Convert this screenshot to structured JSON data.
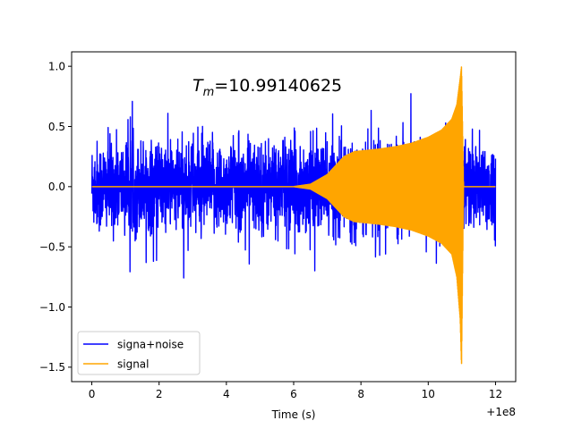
{
  "chart_data": {
    "type": "line",
    "xlabel": "Time (s)",
    "ylabel": "",
    "x_offset_label": "+1e8",
    "xlim": [
      -0.6,
      12.6
    ],
    "ylim": [
      -1.62,
      1.12
    ],
    "xticks": [
      0,
      2,
      4,
      6,
      8,
      10,
      12
    ],
    "xtick_labels": [
      "0",
      "2",
      "4",
      "6",
      "8",
      "10",
      "12"
    ],
    "yticks": [
      1.0,
      0.5,
      0.0,
      -0.5,
      -1.0,
      -1.5
    ],
    "ytick_labels": [
      "1.0",
      "0.5",
      "0.0",
      "−0.5",
      "−1.0",
      "−1.5"
    ],
    "grid": false,
    "legend_position": "lower-left",
    "annotation": {
      "symbol": "T",
      "subscript": "m",
      "value_text": "=10.99140625"
    },
    "series": [
      {
        "name": "signa+noise",
        "color": "#0000ff",
        "description": "noise band roughly ±0.3 with peaks to about +0.8 and −0.85, from x=0 to x=12",
        "x_range": [
          0,
          12
        ],
        "typical_amplitude": 0.3,
        "max": 0.8,
        "min": -0.85
      },
      {
        "name": "signal",
        "color": "#ffa500",
        "description": "chirp: zero until about x=6, envelope grows to about 0.29 near x=7.8, then rises to 1.0 / −1.5 at x≈10.99, then zero until x=12",
        "x": [
          0,
          6.0,
          6.5,
          7.0,
          7.5,
          7.8,
          8.5,
          9.0,
          9.5,
          10.0,
          10.4,
          10.7,
          10.85,
          10.95,
          10.99,
          11.05,
          12.0
        ],
        "upper": [
          0,
          0.0,
          0.02,
          0.1,
          0.25,
          0.29,
          0.31,
          0.33,
          0.36,
          0.41,
          0.47,
          0.56,
          0.68,
          0.9,
          1.0,
          0.0,
          0.0
        ],
        "lower": [
          0,
          0.0,
          -0.02,
          -0.1,
          -0.25,
          -0.29,
          -0.31,
          -0.33,
          -0.36,
          -0.41,
          -0.47,
          -0.56,
          -0.75,
          -1.1,
          -1.5,
          0.0,
          0.0
        ]
      }
    ]
  }
}
